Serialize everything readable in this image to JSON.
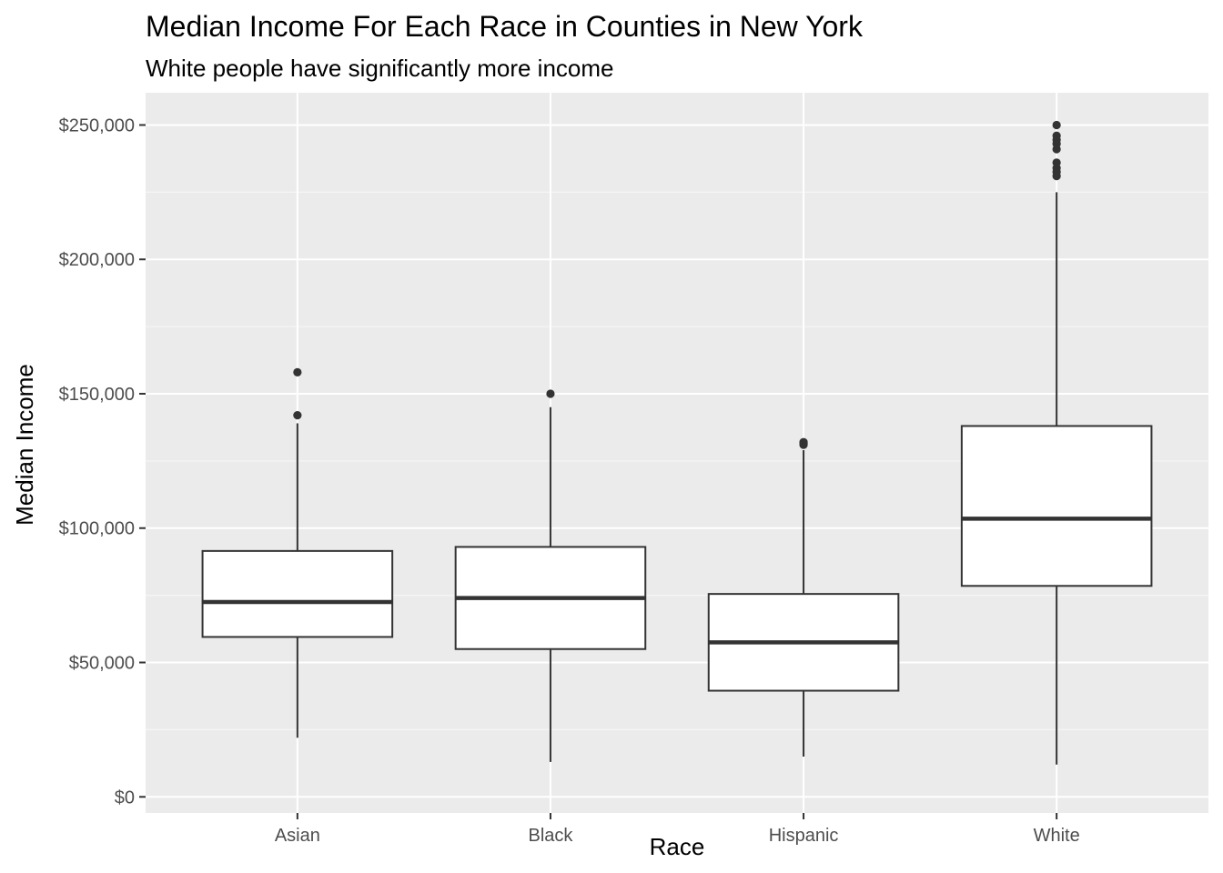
{
  "chart_data": {
    "type": "boxplot",
    "title": "Median Income For Each Race in Counties in New York",
    "subtitle": "White people have significantly more income",
    "xlabel": "Race",
    "ylabel": "Median Income",
    "ylim": [
      -6000,
      262000
    ],
    "y_ticks": [
      0,
      50000,
      100000,
      150000,
      200000,
      250000
    ],
    "y_tick_labels": [
      "$0",
      "$50,000",
      "$100,000",
      "$150,000",
      "$200,000",
      "$250,000"
    ],
    "y_minor_ticks": [
      25000,
      75000,
      125000,
      175000,
      225000
    ],
    "grid": true,
    "categories": [
      "Asian",
      "Black",
      "Hispanic",
      "White"
    ],
    "boxes": [
      {
        "category": "Asian",
        "whisker_low": 22000,
        "q1": 59500,
        "median": 72500,
        "q3": 91500,
        "whisker_high": 139000,
        "outliers": [
          142000,
          158000
        ]
      },
      {
        "category": "Black",
        "whisker_low": 13000,
        "q1": 55000,
        "median": 74000,
        "q3": 93000,
        "whisker_high": 145000,
        "outliers": [
          150000
        ]
      },
      {
        "category": "Hispanic",
        "whisker_low": 15000,
        "q1": 39500,
        "median": 57500,
        "q3": 75500,
        "whisker_high": 129000,
        "outliers": [
          131000,
          131500,
          132000
        ]
      },
      {
        "category": "White",
        "whisker_low": 12000,
        "q1": 78500,
        "median": 103500,
        "q3": 138000,
        "whisker_high": 225000,
        "outliers": [
          231000,
          232500,
          234000,
          236000,
          241000,
          243000,
          244500,
          246000,
          250000
        ]
      }
    ],
    "colors": {
      "panel_background": "#ebebeb",
      "grid_major": "#ffffff",
      "grid_minor": "#f5f5f5",
      "box_fill": "#ffffff",
      "box_line": "#333333",
      "tick_text": "#4d4d4d",
      "tick_mark": "#333333"
    }
  }
}
